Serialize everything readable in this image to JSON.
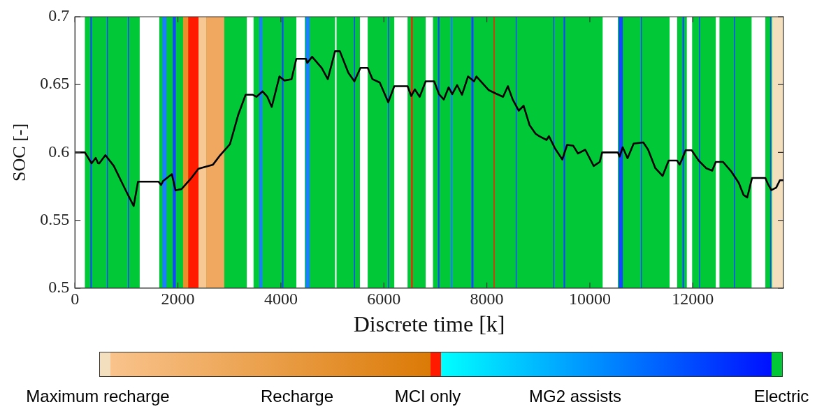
{
  "chart_data": {
    "type": "line",
    "xlabel": "Discrete time [k]",
    "ylabel": "SOC [-]",
    "xlim": [
      0,
      13760
    ],
    "xticks": [
      0,
      2000,
      4000,
      6000,
      8000,
      10000,
      12000
    ],
    "ylim": [
      0.5,
      0.7
    ],
    "yticks": [
      0.5,
      0.55,
      0.6,
      0.65,
      0.7
    ],
    "grid": false,
    "marker": "none",
    "line_style": "solid",
    "series": [
      {
        "color": "#000000",
        "x": [
          0,
          193,
          324,
          404,
          450,
          474,
          592,
          756,
          897,
          1014,
          1141,
          1225,
          1624,
          1672,
          1714,
          1883,
          1953,
          2070,
          2258,
          2399,
          2681,
          2822,
          3010,
          3174,
          3315,
          3455,
          3525,
          3643,
          3737,
          3822,
          3972,
          4066,
          4207,
          4300,
          4488,
          4512,
          4606,
          4793,
          4911,
          5052,
          5145,
          5310,
          5427,
          5545,
          5686,
          5779,
          5920,
          6085,
          6202,
          6460,
          6531,
          6601,
          6695,
          6812,
          6977,
          7070,
          7164,
          7258,
          7328,
          7422,
          7517,
          7634,
          7751,
          7798,
          8033,
          8174,
          8315,
          8408,
          8502,
          8620,
          8714,
          8831,
          8948,
          9018,
          9159,
          9206,
          9324,
          9465,
          9559,
          9676,
          9770,
          9911,
          10075,
          10192,
          10239,
          10545,
          10577,
          10638,
          10732,
          10850,
          11038,
          11132,
          11272,
          11413,
          11531,
          11695,
          11742,
          11789,
          11859,
          11977,
          12117,
          12258,
          12376,
          12446,
          12587,
          12751,
          12892,
          12986,
          13056,
          13150,
          13408,
          13455,
          13525,
          13619,
          13690,
          13760
        ],
        "values": [
          0.6,
          0.6,
          0.592,
          0.596,
          0.592,
          0.592,
          0.598,
          0.59,
          0.579,
          0.57,
          0.5605,
          0.5785,
          0.5785,
          0.576,
          0.579,
          0.584,
          0.572,
          0.573,
          0.581,
          0.588,
          0.591,
          0.598,
          0.606,
          0.628,
          0.6425,
          0.6425,
          0.641,
          0.645,
          0.641,
          0.6335,
          0.656,
          0.653,
          0.654,
          0.669,
          0.669,
          0.666,
          0.6705,
          0.6623,
          0.654,
          0.6746,
          0.6746,
          0.6587,
          0.6524,
          0.6623,
          0.6623,
          0.654,
          0.6515,
          0.637,
          0.6488,
          0.6488,
          0.6416,
          0.6465,
          0.641,
          0.6524,
          0.6524,
          0.643,
          0.639,
          0.648,
          0.643,
          0.6497,
          0.6425,
          0.656,
          0.6524,
          0.656,
          0.646,
          0.6434,
          0.641,
          0.6488,
          0.639,
          0.6308,
          0.6344,
          0.62,
          0.6137,
          0.612,
          0.6092,
          0.612,
          0.6029,
          0.5948,
          0.6056,
          0.605,
          0.5992,
          0.602,
          0.59,
          0.593,
          0.6,
          0.6,
          0.597,
          0.6038,
          0.5957,
          0.6065,
          0.6074,
          0.602,
          0.5884,
          0.5827,
          0.594,
          0.594,
          0.591,
          0.5948,
          0.6016,
          0.6016,
          0.5938,
          0.5884,
          0.5866,
          0.593,
          0.593,
          0.5857,
          0.5776,
          0.5686,
          0.5668,
          0.5812,
          0.5812,
          0.577,
          0.5722,
          0.574,
          0.5795,
          0.5795
        ]
      }
    ],
    "bands": [
      {
        "axis": "x",
        "from": 193,
        "to": 1258,
        "color": "#00c837"
      },
      {
        "axis": "x",
        "from": 1638,
        "to": 3338,
        "color": "#00c837"
      },
      {
        "axis": "x",
        "from": 3469,
        "to": 4300,
        "color": "#00c837"
      },
      {
        "axis": "x",
        "from": 4465,
        "to": 5052,
        "color": "#00c837"
      },
      {
        "axis": "x",
        "from": 5080,
        "to": 5535,
        "color": "#00c837"
      },
      {
        "axis": "x",
        "from": 5686,
        "to": 6202,
        "color": "#00c837"
      },
      {
        "axis": "x",
        "from": 6460,
        "to": 6812,
        "color": "#00c837"
      },
      {
        "axis": "x",
        "from": 6953,
        "to": 10249,
        "color": "#00c837"
      },
      {
        "axis": "x",
        "from": 10545,
        "to": 11549,
        "color": "#00c837"
      },
      {
        "axis": "x",
        "from": 11695,
        "to": 11883,
        "color": "#00c837"
      },
      {
        "axis": "x",
        "from": 11986,
        "to": 12446,
        "color": "#00c837"
      },
      {
        "axis": "x",
        "from": 12517,
        "to": 13141,
        "color": "#00c837"
      },
      {
        "axis": "x",
        "from": 13408,
        "to": 13540,
        "color": "#00c837"
      },
      {
        "axis": "x",
        "from": 13540,
        "to": 13760,
        "color": "#f3dfbd"
      },
      {
        "axis": "x",
        "from": 2100,
        "to": 2350,
        "color": "#e8902c"
      },
      {
        "axis": "x",
        "from": 2350,
        "to": 2550,
        "color": "#f7c894"
      },
      {
        "axis": "x",
        "from": 2550,
        "to": 2900,
        "color": "#f0a860"
      },
      {
        "axis": "x",
        "from": 2200,
        "to": 2400,
        "color": "#ff1a00"
      },
      {
        "axis": "x",
        "from": 300,
        "to": 330,
        "color": "#1448ff"
      },
      {
        "axis": "x",
        "from": 620,
        "to": 640,
        "color": "#1448ff"
      },
      {
        "axis": "x",
        "from": 1030,
        "to": 1050,
        "color": "#1448ff"
      },
      {
        "axis": "x",
        "from": 1700,
        "to": 1780,
        "color": "#1b7dff"
      },
      {
        "axis": "x",
        "from": 1900,
        "to": 1960,
        "color": "#1448ff"
      },
      {
        "axis": "x",
        "from": 3580,
        "to": 3640,
        "color": "#1b7dff"
      },
      {
        "axis": "x",
        "from": 4020,
        "to": 4050,
        "color": "#1448ff"
      },
      {
        "axis": "x",
        "from": 4480,
        "to": 4560,
        "color": "#1b7dff"
      },
      {
        "axis": "x",
        "from": 5420,
        "to": 5440,
        "color": "#1448ff"
      },
      {
        "axis": "x",
        "from": 6080,
        "to": 6100,
        "color": "#1448ff"
      },
      {
        "axis": "x",
        "from": 6530,
        "to": 6560,
        "color": "#ff1a00"
      },
      {
        "axis": "x",
        "from": 7050,
        "to": 7080,
        "color": "#1448ff"
      },
      {
        "axis": "x",
        "from": 7300,
        "to": 7330,
        "color": "#1b7dff"
      },
      {
        "axis": "x",
        "from": 7700,
        "to": 7740,
        "color": "#1448ff"
      },
      {
        "axis": "x",
        "from": 8130,
        "to": 8150,
        "color": "#ff1a00"
      },
      {
        "axis": "x",
        "from": 8560,
        "to": 8580,
        "color": "#1448ff"
      },
      {
        "axis": "x",
        "from": 9290,
        "to": 9310,
        "color": "#1448ff"
      },
      {
        "axis": "x",
        "from": 9490,
        "to": 9520,
        "color": "#1448ff"
      },
      {
        "axis": "x",
        "from": 10560,
        "to": 10640,
        "color": "#1448ff"
      },
      {
        "axis": "x",
        "from": 10990,
        "to": 11010,
        "color": "#1448ff"
      },
      {
        "axis": "x",
        "from": 11800,
        "to": 11830,
        "color": "#1448ff"
      },
      {
        "axis": "x",
        "from": 12120,
        "to": 12140,
        "color": "#1448ff"
      },
      {
        "axis": "x",
        "from": 12800,
        "to": 12820,
        "color": "#1448ff"
      },
      {
        "axis": "x",
        "from": 13500,
        "to": 13520,
        "color": "#1448ff"
      }
    ],
    "annotations": [
      "Maximum recharge",
      "Recharge",
      "MCI only",
      "MG2 assists",
      "Electric"
    ]
  }
}
